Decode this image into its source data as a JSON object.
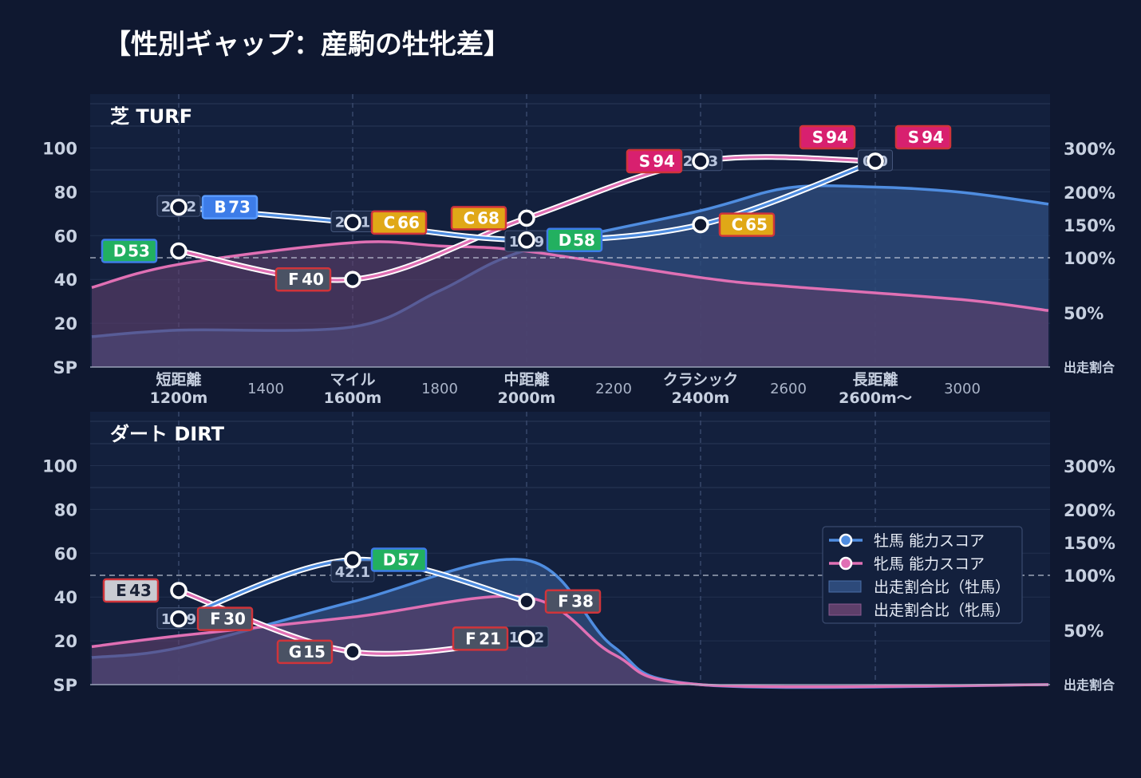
{
  "title": "【性別ギャップ：産駒の牡牝差】",
  "colors": {
    "background": "#0f1830",
    "plot_bg": "#13203d",
    "male_line": "#4f8de0",
    "female_line": "#e070b4",
    "male_area": "#2d4a7a",
    "female_area": "#5e3f6a",
    "grade_S": "#d8206f",
    "grade_B": "#3d7ce8",
    "grade_C": "#e0a817",
    "grade_D": "#22b060",
    "grade_E": "#c9cbd2",
    "grade_F": "#4a5264",
    "grade_G": "#4a5264",
    "border_red": "#d0343a",
    "text_light": "#e6ebf5",
    "tick_text": "#c7d0e0"
  },
  "axes": {
    "left_ticks": [
      "SP",
      "20",
      "40",
      "60",
      "80",
      "100"
    ],
    "right_ticks": [
      "出走割合",
      "50%",
      "100%",
      "150%",
      "200%",
      "300%"
    ],
    "x_categories": [
      {
        "top": "短距離",
        "bottom": "1200m"
      },
      {
        "top": "マイル",
        "bottom": "1600m"
      },
      {
        "top": "中距離",
        "bottom": "2000m"
      },
      {
        "top": "クラシック",
        "bottom": "2400m"
      },
      {
        "top": "長距離",
        "bottom": "2600m〜"
      }
    ],
    "x_minor_labels": [
      "1400",
      "1800",
      "2200",
      "2600",
      "3000"
    ]
  },
  "legend": {
    "male_score": "牡馬 能力スコア",
    "female_score": "牝馬 能力スコア",
    "male_ratio": "出走割合比（牡馬）",
    "female_ratio": "出走割合比（牝馬）"
  },
  "chart_data": [
    {
      "type": "line",
      "panel_title": "芝 TURF",
      "categories": [
        "1200m",
        "1600m",
        "2000m",
        "2400m",
        "2600m〜"
      ],
      "ylim": [
        0,
        100
      ],
      "series": [
        {
          "name": "牡馬 能力スコア",
          "values": [
            73,
            66,
            58,
            65,
            94
          ],
          "grades": [
            "B",
            "C",
            "D",
            "C",
            "S"
          ]
        },
        {
          "name": "牝馬 能力スコア",
          "values": [
            53,
            40,
            68,
            94,
            94
          ],
          "grades": [
            "D",
            "F",
            "C",
            "S",
            "S"
          ]
        }
      ],
      "gap_labels": [
        "20.2",
        "26.1",
        "10.9",
        "29.3",
        "0.0"
      ],
      "area_series": [
        {
          "name": "出走割合比（牡馬）",
          "percent_at_x": [
            [
              1000,
              28
            ],
            [
              1200,
              34
            ],
            [
              1600,
              37
            ],
            [
              1800,
              70
            ],
            [
              2000,
              112
            ],
            [
              2400,
              172
            ],
            [
              2600,
              210
            ],
            [
              2800,
              212
            ],
            [
              3000,
              200
            ],
            [
              3200,
              182
            ]
          ]
        },
        {
          "name": "出走割合比（牝馬）",
          "percent_at_x": [
            [
              1000,
              73
            ],
            [
              1200,
              94
            ],
            [
              1600,
              123
            ],
            [
              1800,
              118
            ],
            [
              2000,
              110
            ],
            [
              2400,
              82
            ],
            [
              2600,
              74
            ],
            [
              3000,
              62
            ],
            [
              3200,
              52
            ]
          ]
        }
      ]
    },
    {
      "type": "line",
      "panel_title": "ダート DIRT",
      "categories": [
        "1200m",
        "1600m",
        "2000m",
        "2400m",
        "2600m〜"
      ],
      "ylim": [
        0,
        100
      ],
      "series": [
        {
          "name": "牡馬 能力スコア",
          "values": [
            30,
            57,
            38,
            null,
            null
          ],
          "grades": [
            "F",
            "D",
            "F",
            null,
            null
          ]
        },
        {
          "name": "牝馬 能力スコア",
          "values": [
            43,
            15,
            21,
            null,
            null
          ],
          "grades": [
            "E",
            "G",
            "F",
            null,
            null
          ]
        }
      ],
      "gap_labels": [
        "13.9",
        "42.1",
        "17.2"
      ],
      "area_series": [
        {
          "name": "出走割合比（牡馬）",
          "percent_at_x": [
            [
              1000,
              25
            ],
            [
              1200,
              34
            ],
            [
              1600,
              76
            ],
            [
              2000,
              123
            ],
            [
              2200,
              35
            ],
            [
              2400,
              0
            ],
            [
              3200,
              0
            ]
          ]
        },
        {
          "name": "出走割合比（牝馬）",
          "percent_at_x": [
            [
              1000,
              35
            ],
            [
              1200,
              45
            ],
            [
              1600,
              62
            ],
            [
              2000,
              80
            ],
            [
              2200,
              28
            ],
            [
              2400,
              0
            ],
            [
              3200,
              0
            ]
          ]
        }
      ]
    }
  ]
}
